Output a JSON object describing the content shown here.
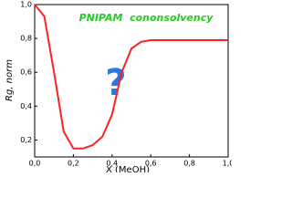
{
  "chart_data": {
    "type": "line",
    "x_label": "X (MeOH)",
    "y_label": "Rg, norm",
    "annotations": [
      "PNIPAM  cononsolvency",
      "?"
    ],
    "x": [
      0,
      0.05,
      0.1,
      0.15,
      0.2,
      0.25,
      0.3,
      0.35,
      0.4,
      0.45,
      0.5,
      0.55,
      0.6,
      0.7,
      0.8,
      0.9,
      1.0
    ],
    "series": [
      {
        "color": "#ff2020",
        "values": [
          1.0,
          0.93,
          0.6,
          0.25,
          0.15,
          0.15,
          0.17,
          0.22,
          0.35,
          0.6,
          0.74,
          0.78,
          0.79,
          0.79,
          0.79,
          0.79,
          0.79
        ]
      }
    ],
    "xlim": [
      0,
      1
    ],
    "ylim": [
      0.1,
      1.0
    ],
    "xticks": [
      {
        "value": 0,
        "label": "0,0"
      },
      {
        "value": 0.2,
        "label": "0,2"
      },
      {
        "value": 0.4,
        "label": "0,4"
      },
      {
        "value": 0.6,
        "label": "0,6"
      },
      {
        "value": 0.8,
        "label": "0,8"
      },
      {
        "value": 1.0,
        "label": "1,0"
      }
    ],
    "yticks": [
      {
        "value": 0.2,
        "label": "0,2"
      },
      {
        "value": 0.4,
        "label": "0,4"
      },
      {
        "value": 0.6,
        "label": "0,6"
      },
      {
        "value": 0.8,
        "label": "0,8"
      },
      {
        "value": 1.0,
        "label": "1,0"
      }
    ]
  }
}
